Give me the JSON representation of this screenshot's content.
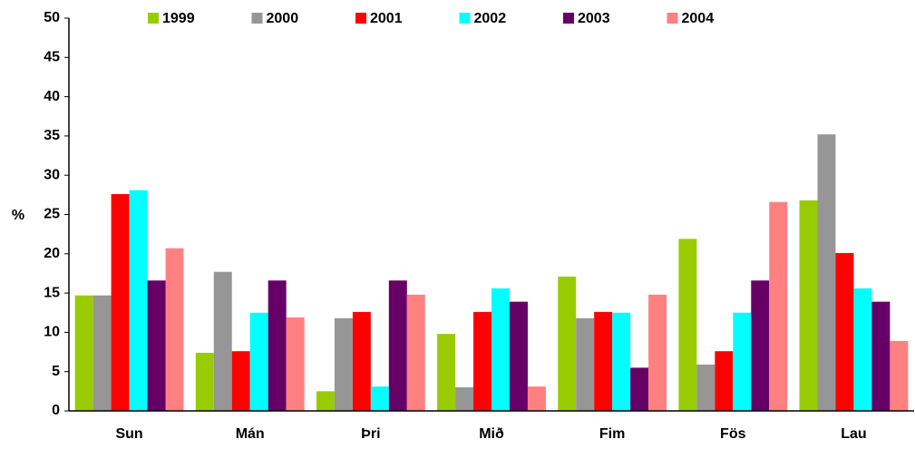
{
  "chart_data": {
    "type": "bar",
    "y_label": "%",
    "categories": [
      "Sun",
      "Mán",
      "Þri",
      "Mið",
      "Fim",
      "Fös",
      "Lau"
    ],
    "series": [
      {
        "name": "1999",
        "color": "#99cc00",
        "values": [
          14.7,
          7.4,
          2.5,
          9.8,
          17.1,
          21.9,
          26.8
        ]
      },
      {
        "name": "2000",
        "color": "#969696",
        "values": [
          14.7,
          17.7,
          11.8,
          3.0,
          11.8,
          5.9,
          35.2
        ]
      },
      {
        "name": "2001",
        "color": "#ff0000",
        "values": [
          27.6,
          7.6,
          12.6,
          12.6,
          12.6,
          7.6,
          20.1
        ]
      },
      {
        "name": "2002",
        "color": "#00ffff",
        "values": [
          28.1,
          12.5,
          3.1,
          15.6,
          12.5,
          12.5,
          15.6
        ]
      },
      {
        "name": "2003",
        "color": "#660066",
        "values": [
          16.6,
          16.6,
          16.6,
          13.9,
          5.5,
          16.6,
          13.9
        ]
      },
      {
        "name": "2004",
        "color": "#ff8080",
        "values": [
          20.7,
          11.9,
          14.8,
          3.1,
          14.8,
          26.6,
          8.9
        ]
      }
    ],
    "ylim": [
      0,
      50
    ],
    "yticks": [
      0,
      5,
      10,
      15,
      20,
      25,
      30,
      35,
      40,
      45,
      50
    ]
  }
}
